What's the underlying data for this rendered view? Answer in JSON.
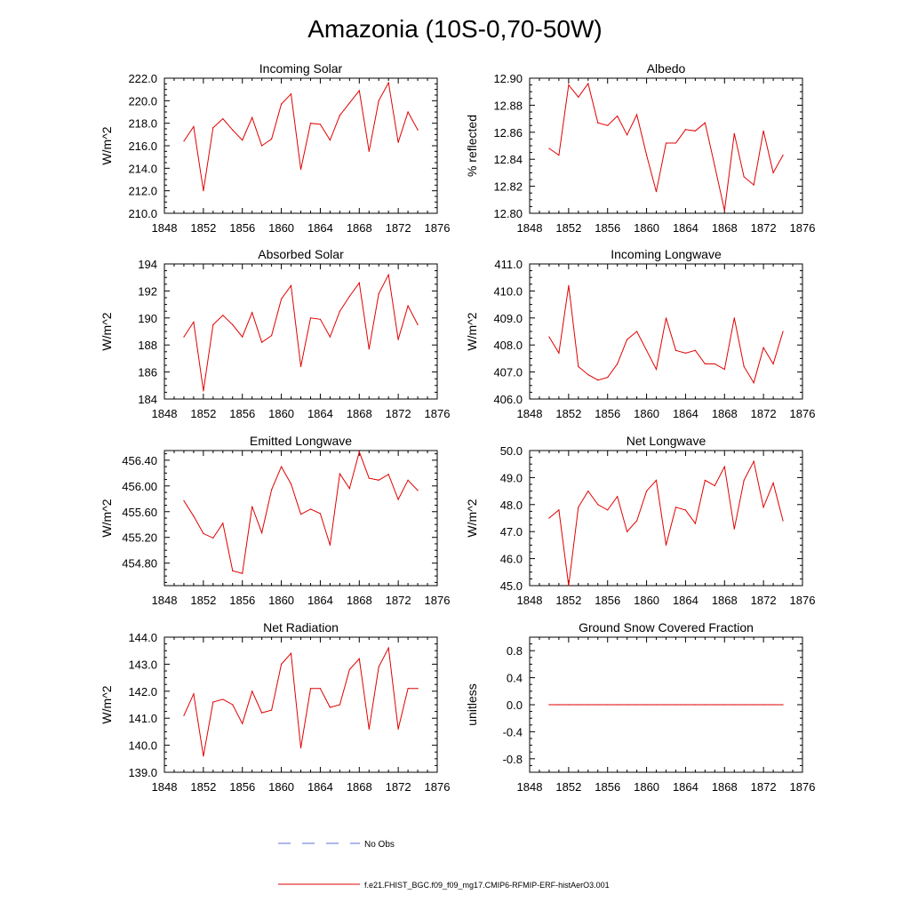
{
  "figure": {
    "title": "Amazonia (10S-0,70-50W)",
    "legend": [
      {
        "label": "No Obs",
        "color": "#5b6fd6",
        "style": "dashed"
      },
      {
        "label": "f.e21.FHIST_BGC.f09_f09_mg17.CMIP6-RFMIP-ERF-histAerO3.001",
        "color": "#e00000",
        "style": "solid"
      }
    ]
  },
  "chart_data": [
    {
      "type": "line",
      "title": "Incoming Solar",
      "ylabel": "W/m^2",
      "xlim": [
        1848,
        1876
      ],
      "xticks": [
        "1848",
        "1852",
        "1856",
        "1860",
        "1864",
        "1868",
        "1872",
        "1876"
      ],
      "ylim": [
        210,
        222
      ],
      "yticks": [
        "210.0",
        "212.0",
        "214.0",
        "216.0",
        "218.0",
        "220.0",
        "222.0"
      ],
      "color": "#e00000",
      "x": [
        1850,
        1851,
        1852,
        1853,
        1854,
        1855,
        1856,
        1857,
        1858,
        1859,
        1860,
        1861,
        1862,
        1863,
        1864,
        1865,
        1866,
        1867,
        1868,
        1869,
        1870,
        1871,
        1872,
        1873,
        1874
      ],
      "y": [
        216.4,
        217.7,
        212.0,
        217.6,
        218.4,
        217.4,
        216.5,
        218.5,
        216.0,
        216.6,
        219.7,
        220.6,
        213.9,
        218.0,
        217.9,
        216.5,
        218.7,
        219.8,
        220.9,
        215.5,
        220.0,
        221.6,
        216.3,
        219.0,
        217.4
      ]
    },
    {
      "type": "line",
      "title": "Albedo",
      "ylabel": "% reflected",
      "xlim": [
        1848,
        1876
      ],
      "xticks": [
        "1848",
        "1852",
        "1856",
        "1860",
        "1864",
        "1868",
        "1872",
        "1876"
      ],
      "ylim": [
        12.8,
        12.9
      ],
      "yticks": [
        "12.80",
        "12.82",
        "12.84",
        "12.86",
        "12.88",
        "12.90"
      ],
      "color": "#e00000",
      "x": [
        1850,
        1851,
        1852,
        1853,
        1854,
        1855,
        1856,
        1857,
        1858,
        1859,
        1860,
        1861,
        1862,
        1863,
        1864,
        1865,
        1866,
        1867,
        1868,
        1869,
        1870,
        1871,
        1872,
        1873,
        1874
      ],
      "y": [
        12.848,
        12.843,
        12.895,
        12.886,
        12.896,
        12.867,
        12.865,
        12.872,
        12.858,
        12.873,
        12.843,
        12.816,
        12.852,
        12.852,
        12.862,
        12.861,
        12.867,
        12.835,
        12.802,
        12.859,
        12.827,
        12.821,
        12.861,
        12.83,
        12.843
      ]
    },
    {
      "type": "line",
      "title": "Absorbed Solar",
      "ylabel": "W/m^2",
      "xlim": [
        1848,
        1876
      ],
      "xticks": [
        "1848",
        "1852",
        "1856",
        "1860",
        "1864",
        "1868",
        "1872",
        "1876"
      ],
      "ylim": [
        184,
        194
      ],
      "yticks": [
        "184",
        "186",
        "188",
        "190",
        "192",
        "194"
      ],
      "color": "#e00000",
      "x": [
        1850,
        1851,
        1852,
        1853,
        1854,
        1855,
        1856,
        1857,
        1858,
        1859,
        1860,
        1861,
        1862,
        1863,
        1864,
        1865,
        1866,
        1867,
        1868,
        1869,
        1870,
        1871,
        1872,
        1873,
        1874
      ],
      "y": [
        188.6,
        189.7,
        184.6,
        189.5,
        190.2,
        189.5,
        188.6,
        190.4,
        188.2,
        188.7,
        191.4,
        192.4,
        186.4,
        190.0,
        189.9,
        188.6,
        190.5,
        191.6,
        192.6,
        187.7,
        191.8,
        193.2,
        188.4,
        190.9,
        189.5
      ]
    },
    {
      "type": "line",
      "title": "Incoming Longwave",
      "ylabel": "W/m^2",
      "xlim": [
        1848,
        1876
      ],
      "xticks": [
        "1848",
        "1852",
        "1856",
        "1860",
        "1864",
        "1868",
        "1872",
        "1876"
      ],
      "ylim": [
        406,
        411
      ],
      "yticks": [
        "406.0",
        "407.0",
        "408.0",
        "409.0",
        "410.0",
        "411.0"
      ],
      "color": "#e00000",
      "x": [
        1850,
        1851,
        1852,
        1853,
        1854,
        1855,
        1856,
        1857,
        1858,
        1859,
        1860,
        1861,
        1862,
        1863,
        1864,
        1865,
        1866,
        1867,
        1868,
        1869,
        1870,
        1871,
        1872,
        1873,
        1874
      ],
      "y": [
        408.3,
        407.7,
        410.2,
        407.2,
        406.9,
        406.7,
        406.8,
        407.3,
        408.2,
        408.5,
        407.8,
        407.1,
        409.0,
        407.8,
        407.7,
        407.8,
        407.3,
        407.3,
        407.1,
        409.0,
        407.2,
        406.6,
        407.9,
        407.3,
        408.5
      ]
    },
    {
      "type": "line",
      "title": "Emitted Longwave",
      "ylabel": "W/m^2",
      "xlim": [
        1848,
        1876
      ],
      "xticks": [
        "1848",
        "1852",
        "1856",
        "1860",
        "1864",
        "1868",
        "1872",
        "1876"
      ],
      "ylim": [
        454.45,
        456.55
      ],
      "yticks": [
        "454.80",
        "455.20",
        "455.60",
        "456.00",
        "456.40"
      ],
      "color": "#e00000",
      "x": [
        1850,
        1851,
        1852,
        1853,
        1854,
        1855,
        1856,
        1857,
        1858,
        1859,
        1860,
        1861,
        1862,
        1863,
        1864,
        1865,
        1866,
        1867,
        1868,
        1869,
        1870,
        1871,
        1872,
        1873,
        1874
      ],
      "y": [
        455.77,
        455.53,
        455.26,
        455.19,
        455.42,
        454.68,
        454.64,
        455.68,
        455.27,
        455.94,
        456.3,
        456.03,
        455.56,
        455.64,
        455.57,
        455.08,
        456.19,
        455.96,
        456.53,
        456.12,
        456.09,
        456.18,
        455.79,
        456.09,
        455.93
      ]
    },
    {
      "type": "line",
      "title": "Net Longwave",
      "ylabel": "W/m^2",
      "xlim": [
        1848,
        1876
      ],
      "xticks": [
        "1848",
        "1852",
        "1856",
        "1860",
        "1864",
        "1868",
        "1872",
        "1876"
      ],
      "ylim": [
        45,
        50
      ],
      "yticks": [
        "45.0",
        "46.0",
        "47.0",
        "48.0",
        "49.0",
        "50.0"
      ],
      "color": "#e00000",
      "x": [
        1850,
        1851,
        1852,
        1853,
        1854,
        1855,
        1856,
        1857,
        1858,
        1859,
        1860,
        1861,
        1862,
        1863,
        1864,
        1865,
        1866,
        1867,
        1868,
        1869,
        1870,
        1871,
        1872,
        1873,
        1874
      ],
      "y": [
        47.5,
        47.8,
        45.0,
        47.9,
        48.5,
        48.0,
        47.8,
        48.3,
        47.0,
        47.4,
        48.5,
        48.9,
        46.5,
        47.9,
        47.8,
        47.3,
        48.9,
        48.7,
        49.4,
        47.1,
        48.9,
        49.6,
        47.9,
        48.8,
        47.4
      ]
    },
    {
      "type": "line",
      "title": "Net Radiation",
      "ylabel": "W/m^2",
      "xlim": [
        1848,
        1876
      ],
      "xticks": [
        "1848",
        "1852",
        "1856",
        "1860",
        "1864",
        "1868",
        "1872",
        "1876"
      ],
      "ylim": [
        139,
        144
      ],
      "yticks": [
        "139.0",
        "140.0",
        "141.0",
        "142.0",
        "143.0",
        "144.0"
      ],
      "color": "#e00000",
      "x": [
        1850,
        1851,
        1852,
        1853,
        1854,
        1855,
        1856,
        1857,
        1858,
        1859,
        1860,
        1861,
        1862,
        1863,
        1864,
        1865,
        1866,
        1867,
        1868,
        1869,
        1870,
        1871,
        1872,
        1873,
        1874
      ],
      "y": [
        141.1,
        141.9,
        139.6,
        141.6,
        141.7,
        141.5,
        140.8,
        142.0,
        141.2,
        141.3,
        143.0,
        143.4,
        139.9,
        142.1,
        142.1,
        141.4,
        141.5,
        142.8,
        143.2,
        140.6,
        142.9,
        143.6,
        140.6,
        142.1,
        142.1
      ]
    },
    {
      "type": "line",
      "title": "Ground Snow Covered Fraction",
      "ylabel": "unitless",
      "xlim": [
        1848,
        1876
      ],
      "xticks": [
        "1848",
        "1852",
        "1856",
        "1860",
        "1864",
        "1868",
        "1872",
        "1876"
      ],
      "ylim": [
        -1.0,
        1.0
      ],
      "yticks": [
        "-0.8",
        "-0.4",
        "0.0",
        "0.4",
        "0.8"
      ],
      "color": "#e00000",
      "x": [
        1850,
        1851,
        1852,
        1853,
        1854,
        1855,
        1856,
        1857,
        1858,
        1859,
        1860,
        1861,
        1862,
        1863,
        1864,
        1865,
        1866,
        1867,
        1868,
        1869,
        1870,
        1871,
        1872,
        1873,
        1874
      ],
      "y": [
        0,
        0,
        0,
        0,
        0,
        0,
        0,
        0,
        0,
        0,
        0,
        0,
        0,
        0,
        0,
        0,
        0,
        0,
        0,
        0,
        0,
        0,
        0,
        0,
        0
      ]
    }
  ]
}
